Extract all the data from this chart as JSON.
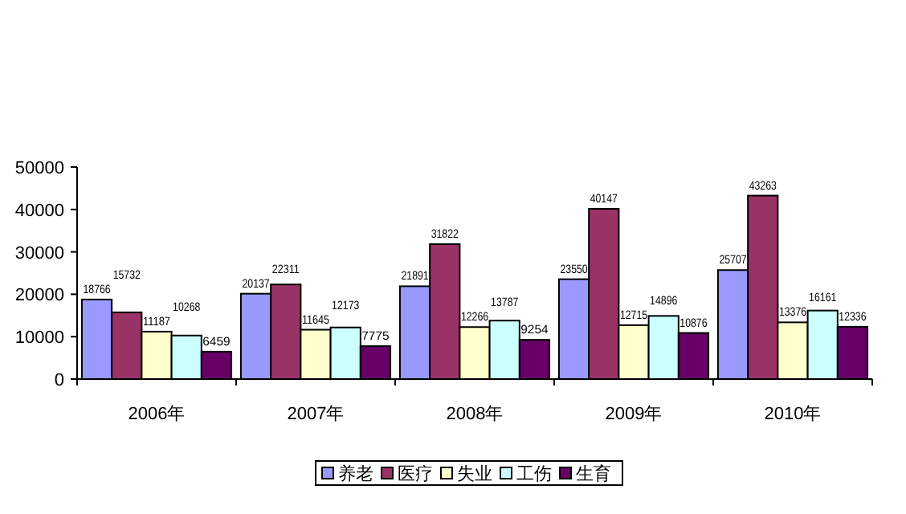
{
  "chart_data": {
    "type": "bar",
    "categories": [
      "2006年",
      "2007年",
      "2008年",
      "2009年",
      "2010年"
    ],
    "series": [
      {
        "name": "养老",
        "color": "#9999ff",
        "values": [
          18766,
          20137,
          21891,
          23550,
          25707
        ]
      },
      {
        "name": "医疗",
        "color": "#993366",
        "values": [
          15732,
          22311,
          31822,
          40147,
          43263
        ]
      },
      {
        "name": "失业",
        "color": "#ffffcc",
        "values": [
          11187,
          11645,
          12266,
          12715,
          13376
        ]
      },
      {
        "name": "工伤",
        "color": "#ccffff",
        "values": [
          10268,
          12173,
          13787,
          14896,
          16161
        ]
      },
      {
        "name": "生育",
        "color": "#660066",
        "values": [
          6459,
          7775,
          9254,
          10876,
          12336
        ]
      }
    ],
    "ylim": [
      0,
      50000
    ],
    "yticks": [
      0,
      10000,
      20000,
      30000,
      40000,
      50000
    ],
    "data_labels": true,
    "legend": "bottom",
    "grid": false
  }
}
